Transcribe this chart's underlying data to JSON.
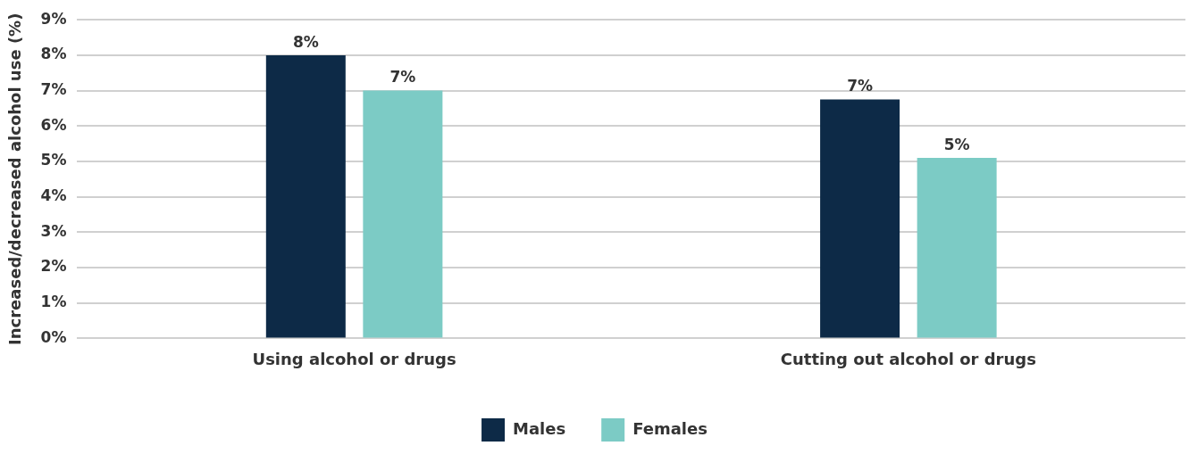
{
  "chart_data": {
    "type": "bar",
    "ylabel": "Increased/decreased alcohol use (%)",
    "categories": [
      "Using alcohol or drugs",
      "Cutting out alcohol or drugs"
    ],
    "series": [
      {
        "name": "Males",
        "color": "#0d2a47",
        "values": [
          8,
          6.75
        ],
        "value_labels": [
          "8%",
          "7%"
        ]
      },
      {
        "name": "Females",
        "color": "#7ccbc5",
        "values": [
          7,
          5.1
        ],
        "value_labels": [
          "7%",
          "5%"
        ]
      }
    ],
    "ylim": [
      0,
      9
    ],
    "yticks": [
      {
        "value": 0,
        "label": "0%"
      },
      {
        "value": 1,
        "label": "1%"
      },
      {
        "value": 2,
        "label": "2%"
      },
      {
        "value": 3,
        "label": "3%"
      },
      {
        "value": 4,
        "label": "4%"
      },
      {
        "value": 5,
        "label": "5%"
      },
      {
        "value": 6,
        "label": "6%"
      },
      {
        "value": 7,
        "label": "7%"
      },
      {
        "value": 8,
        "label": "8%"
      },
      {
        "value": 9,
        "label": "9%"
      }
    ],
    "grid": "y",
    "legend": "bottom"
  }
}
